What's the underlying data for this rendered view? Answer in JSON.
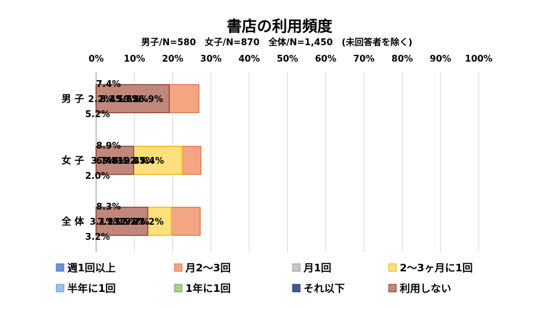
{
  "chart_data": {
    "type": "bar",
    "orientation": "horizontal",
    "stacked": "percent",
    "title": "書店の利用頻度",
    "subtitle": "男子/N=580　女子/N=870　全体/N=1,450　(未回答者を除く)",
    "categories": [
      "男 子",
      "女 子",
      "全 体"
    ],
    "x_ticks": [
      "0%",
      "10%",
      "20%",
      "30%",
      "40%",
      "50%",
      "60%",
      "70%",
      "80%",
      "90%",
      "100%"
    ],
    "xlim": [
      0,
      100
    ],
    "grid": true,
    "legend_position": "bottom",
    "series": [
      {
        "name": "週1回以上",
        "color": "#6f8fd0",
        "values": [
          8.4,
          6.4,
          7.2
        ]
      },
      {
        "name": "月2～3回",
        "color": "#f4a582",
        "values": [
          26.9,
          27.4,
          27.2
        ]
      },
      {
        "name": "月1回",
        "color": "#c8c8c8",
        "values": [
          15.2,
          19.4,
          17.7
        ]
      },
      {
        "name": "2～3ヶ月に1回",
        "color": "#ffe07a",
        "values": [
          15.5,
          22.5,
          19.7
        ]
      },
      {
        "name": "半年に1回",
        "color": "#9cc3f0",
        "values": [
          7.4,
          8.9,
          8.3
        ]
      },
      {
        "name": "1年に1回",
        "color": "#a9d18e",
        "values": [
          2.2,
          3.7,
          3.1
        ]
      },
      {
        "name": "それ以下",
        "color": "#3c5a8a",
        "values": [
          5.2,
          2.0,
          3.2
        ]
      },
      {
        "name": "利用しない",
        "color": "#c0877a",
        "values": [
          19.1,
          9.8,
          13.5
        ]
      }
    ],
    "data_labels": [
      [
        "8.4%",
        "26.9%",
        "15.2%",
        "15.5%",
        "7.4%",
        "2.2%",
        "5.2%",
        "19.1%"
      ],
      [
        "6.4%",
        "27.4%",
        "19.4%",
        "22.5%",
        "8.9%",
        "3.7%",
        "2.0%",
        "9.8%"
      ],
      [
        "7.2%",
        "27.2%",
        "17.7%",
        "19.7%",
        "8.3%",
        "3.1%",
        "3.2%",
        "13.5%"
      ]
    ]
  }
}
